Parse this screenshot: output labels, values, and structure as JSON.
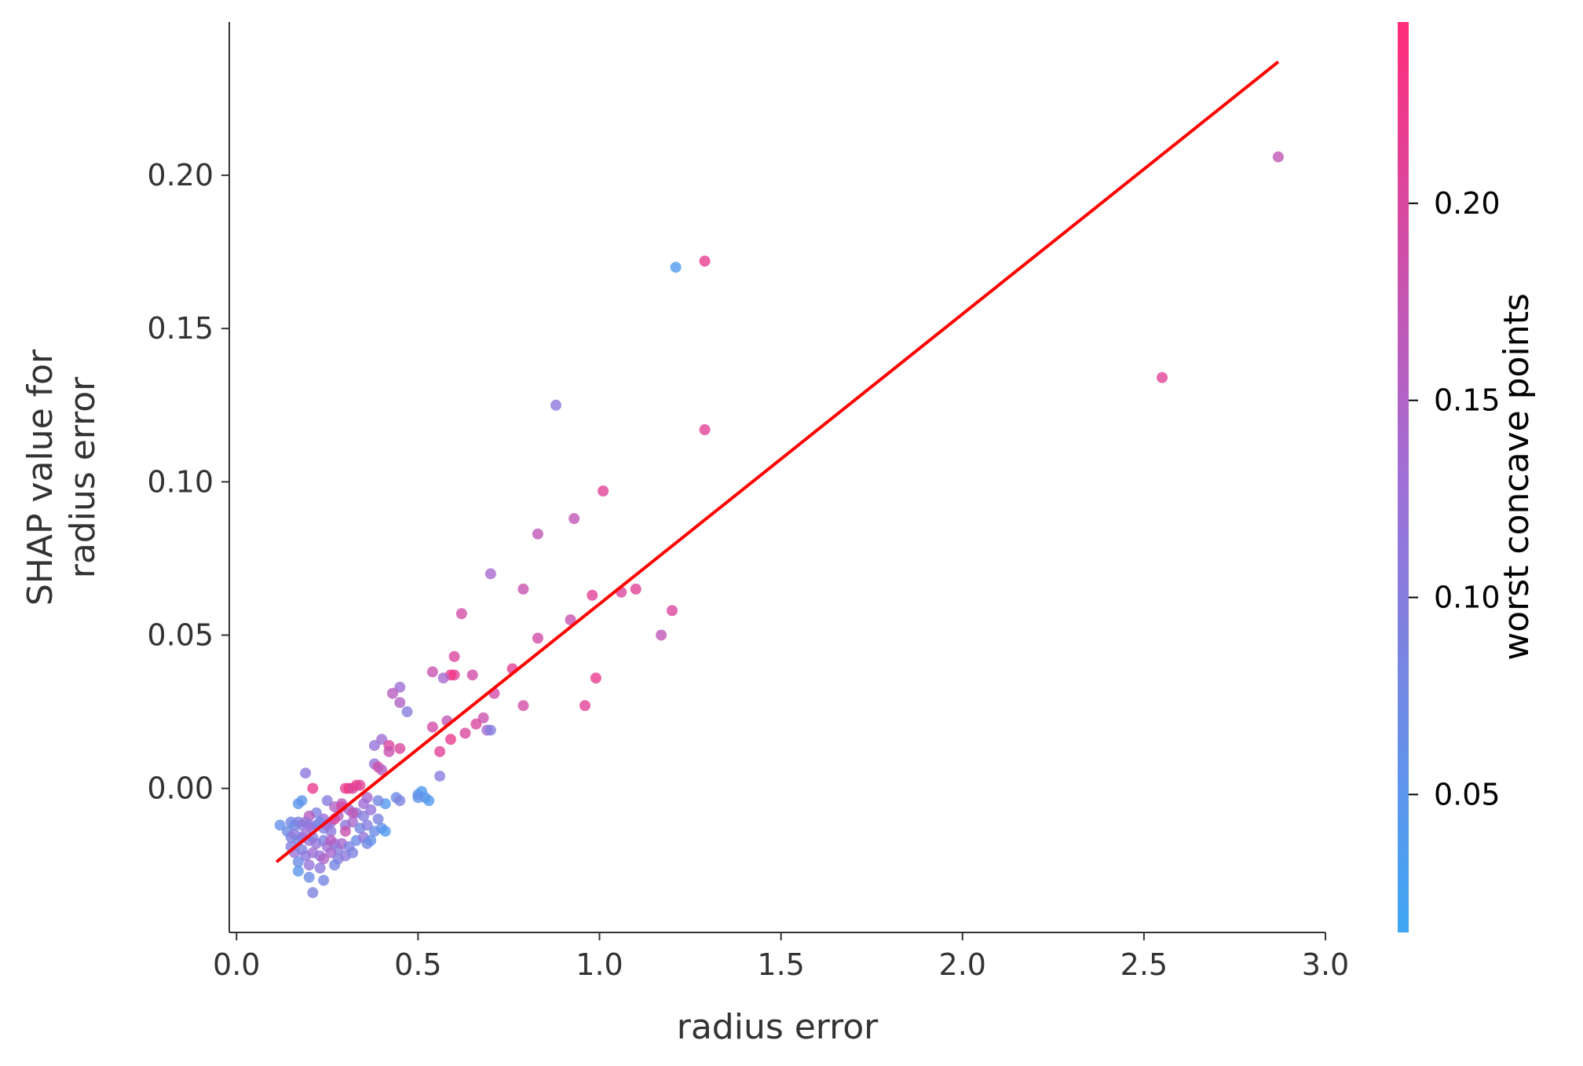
{
  "chart_data": {
    "type": "scatter",
    "title": "",
    "xlabel": "radius error",
    "ylabel_lines": [
      "SHAP value for",
      "radius error"
    ],
    "xlim": [
      -0.02,
      3.0
    ],
    "ylim": [
      -0.047,
      0.25
    ],
    "x_ticks": [
      0.0,
      0.5,
      1.0,
      1.5,
      2.0,
      2.5,
      3.0
    ],
    "x_tick_labels": [
      "0.0",
      "0.5",
      "1.0",
      "1.5",
      "2.0",
      "2.5",
      "3.0"
    ],
    "y_ticks": [
      0.0,
      0.05,
      0.1,
      0.15,
      0.2
    ],
    "y_tick_labels": [
      "0.00",
      "0.05",
      "0.10",
      "0.15",
      "0.20"
    ],
    "grid": false,
    "colorbar": {
      "label": "worst concave points",
      "range": [
        0.015,
        0.246
      ],
      "ticks": [
        0.05,
        0.1,
        0.15,
        0.2
      ],
      "tick_labels": [
        "0.05",
        "0.10",
        "0.15",
        "0.20"
      ],
      "color_low": "#3fa7f5",
      "color_mid": "#a06fd6",
      "color_high": "#ff2d7a"
    },
    "trend_line": {
      "x": [
        0.11,
        2.87
      ],
      "y": [
        -0.024,
        0.237
      ],
      "color": "#ff0000"
    },
    "points": [
      [
        2.87,
        0.206,
        0.17
      ],
      [
        2.55,
        0.134,
        0.21
      ],
      [
        1.29,
        0.172,
        0.22
      ],
      [
        1.21,
        0.17,
        0.04
      ],
      [
        1.29,
        0.117,
        0.21
      ],
      [
        0.88,
        0.125,
        0.11
      ],
      [
        1.01,
        0.097,
        0.21
      ],
      [
        0.93,
        0.088,
        0.17
      ],
      [
        0.83,
        0.083,
        0.17
      ],
      [
        0.7,
        0.07,
        0.14
      ],
      [
        0.79,
        0.065,
        0.18
      ],
      [
        0.98,
        0.063,
        0.21
      ],
      [
        1.06,
        0.064,
        0.2
      ],
      [
        1.1,
        0.065,
        0.21
      ],
      [
        1.2,
        0.058,
        0.2
      ],
      [
        1.17,
        0.05,
        0.17
      ],
      [
        0.92,
        0.055,
        0.18
      ],
      [
        0.83,
        0.049,
        0.19
      ],
      [
        0.62,
        0.057,
        0.19
      ],
      [
        0.6,
        0.043,
        0.2
      ],
      [
        0.76,
        0.039,
        0.21
      ],
      [
        0.54,
        0.038,
        0.18
      ],
      [
        0.6,
        0.037,
        0.21
      ],
      [
        0.59,
        0.037,
        0.23
      ],
      [
        0.65,
        0.037,
        0.19
      ],
      [
        0.57,
        0.036,
        0.14
      ],
      [
        0.99,
        0.036,
        0.22
      ],
      [
        0.71,
        0.031,
        0.19
      ],
      [
        0.45,
        0.033,
        0.13
      ],
      [
        0.43,
        0.031,
        0.16
      ],
      [
        0.45,
        0.028,
        0.15
      ],
      [
        0.47,
        0.025,
        0.1
      ],
      [
        0.79,
        0.027,
        0.19
      ],
      [
        0.96,
        0.027,
        0.21
      ],
      [
        0.68,
        0.023,
        0.18
      ],
      [
        0.58,
        0.022,
        0.17
      ],
      [
        0.66,
        0.021,
        0.2
      ],
      [
        0.54,
        0.02,
        0.19
      ],
      [
        0.69,
        0.019,
        0.14
      ],
      [
        0.7,
        0.019,
        0.1
      ],
      [
        0.63,
        0.018,
        0.2
      ],
      [
        0.4,
        0.016,
        0.13
      ],
      [
        0.59,
        0.016,
        0.22
      ],
      [
        0.38,
        0.014,
        0.12
      ],
      [
        0.42,
        0.014,
        0.2
      ],
      [
        0.45,
        0.013,
        0.2
      ],
      [
        0.56,
        0.012,
        0.21
      ],
      [
        0.42,
        0.012,
        0.18
      ],
      [
        0.38,
        0.008,
        0.12
      ],
      [
        0.39,
        0.007,
        0.19
      ],
      [
        0.4,
        0.006,
        0.16
      ],
      [
        0.56,
        0.004,
        0.1
      ],
      [
        0.19,
        0.005,
        0.11
      ],
      [
        0.21,
        0.0,
        0.22
      ],
      [
        0.3,
        0.0,
        0.21
      ],
      [
        0.31,
        0.0,
        0.23
      ],
      [
        0.32,
        0.0,
        0.2
      ],
      [
        0.33,
        0.001,
        0.22
      ],
      [
        0.34,
        0.001,
        0.21
      ],
      [
        0.5,
        -0.002,
        0.05
      ],
      [
        0.51,
        -0.001,
        0.04
      ],
      [
        0.52,
        -0.003,
        0.05
      ],
      [
        0.53,
        -0.004,
        0.04
      ],
      [
        0.5,
        -0.003,
        0.06
      ],
      [
        0.44,
        -0.003,
        0.07
      ],
      [
        0.45,
        -0.004,
        0.09
      ],
      [
        0.41,
        -0.005,
        0.04
      ],
      [
        0.39,
        -0.004,
        0.08
      ],
      [
        0.36,
        -0.003,
        0.14
      ],
      [
        0.35,
        -0.005,
        0.13
      ],
      [
        0.18,
        -0.004,
        0.05
      ],
      [
        0.17,
        -0.005,
        0.05
      ],
      [
        0.25,
        -0.004,
        0.1
      ],
      [
        0.27,
        -0.006,
        0.15
      ],
      [
        0.29,
        -0.005,
        0.16
      ],
      [
        0.31,
        -0.007,
        0.13
      ],
      [
        0.33,
        -0.008,
        0.11
      ],
      [
        0.35,
        -0.009,
        0.1
      ],
      [
        0.37,
        -0.007,
        0.12
      ],
      [
        0.39,
        -0.01,
        0.09
      ],
      [
        0.22,
        -0.008,
        0.09
      ],
      [
        0.2,
        -0.009,
        0.16
      ],
      [
        0.24,
        -0.01,
        0.13
      ],
      [
        0.26,
        -0.011,
        0.12
      ],
      [
        0.28,
        -0.009,
        0.15
      ],
      [
        0.3,
        -0.012,
        0.11
      ],
      [
        0.32,
        -0.011,
        0.14
      ],
      [
        0.34,
        -0.013,
        0.08
      ],
      [
        0.36,
        -0.012,
        0.1
      ],
      [
        0.38,
        -0.014,
        0.07
      ],
      [
        0.4,
        -0.013,
        0.06
      ],
      [
        0.41,
        -0.014,
        0.04
      ],
      [
        0.15,
        -0.011,
        0.08
      ],
      [
        0.16,
        -0.012,
        0.07
      ],
      [
        0.17,
        -0.011,
        0.09
      ],
      [
        0.18,
        -0.012,
        0.1
      ],
      [
        0.19,
        -0.011,
        0.12
      ],
      [
        0.2,
        -0.012,
        0.11
      ],
      [
        0.21,
        -0.013,
        0.13
      ],
      [
        0.22,
        -0.012,
        0.1
      ],
      [
        0.23,
        -0.011,
        0.08
      ],
      [
        0.24,
        -0.013,
        0.09
      ],
      [
        0.25,
        -0.012,
        0.14
      ],
      [
        0.26,
        -0.014,
        0.11
      ],
      [
        0.12,
        -0.012,
        0.06
      ],
      [
        0.14,
        -0.014,
        0.07
      ],
      [
        0.15,
        -0.016,
        0.09
      ],
      [
        0.16,
        -0.015,
        0.11
      ],
      [
        0.17,
        -0.017,
        0.08
      ],
      [
        0.18,
        -0.016,
        0.1
      ],
      [
        0.19,
        -0.015,
        0.13
      ],
      [
        0.2,
        -0.017,
        0.12
      ],
      [
        0.21,
        -0.016,
        0.1
      ],
      [
        0.22,
        -0.018,
        0.12
      ],
      [
        0.24,
        -0.017,
        0.09
      ],
      [
        0.25,
        -0.019,
        0.13
      ],
      [
        0.27,
        -0.018,
        0.11
      ],
      [
        0.28,
        -0.02,
        0.1
      ],
      [
        0.29,
        -0.018,
        0.14
      ],
      [
        0.31,
        -0.019,
        0.09
      ],
      [
        0.33,
        -0.017,
        0.07
      ],
      [
        0.35,
        -0.016,
        0.12
      ],
      [
        0.36,
        -0.018,
        0.08
      ],
      [
        0.37,
        -0.017,
        0.06
      ],
      [
        0.15,
        -0.019,
        0.1
      ],
      [
        0.16,
        -0.021,
        0.12
      ],
      [
        0.18,
        -0.02,
        0.09
      ],
      [
        0.19,
        -0.022,
        0.11
      ],
      [
        0.21,
        -0.021,
        0.13
      ],
      [
        0.23,
        -0.022,
        0.12
      ],
      [
        0.24,
        -0.023,
        0.15
      ],
      [
        0.26,
        -0.021,
        0.14
      ],
      [
        0.28,
        -0.023,
        0.1
      ],
      [
        0.3,
        -0.022,
        0.11
      ],
      [
        0.32,
        -0.021,
        0.09
      ],
      [
        0.17,
        -0.024,
        0.07
      ],
      [
        0.2,
        -0.025,
        0.12
      ],
      [
        0.23,
        -0.026,
        0.11
      ],
      [
        0.27,
        -0.025,
        0.08
      ],
      [
        0.17,
        -0.027,
        0.05
      ],
      [
        0.2,
        -0.029,
        0.07
      ],
      [
        0.24,
        -0.03,
        0.08
      ],
      [
        0.21,
        -0.034,
        0.09
      ],
      [
        0.26,
        -0.017,
        0.16
      ],
      [
        0.3,
        -0.014,
        0.18
      ],
      [
        0.32,
        -0.008,
        0.17
      ],
      [
        0.29,
        -0.006,
        0.19
      ],
      [
        0.27,
        -0.01,
        0.2
      ]
    ]
  }
}
